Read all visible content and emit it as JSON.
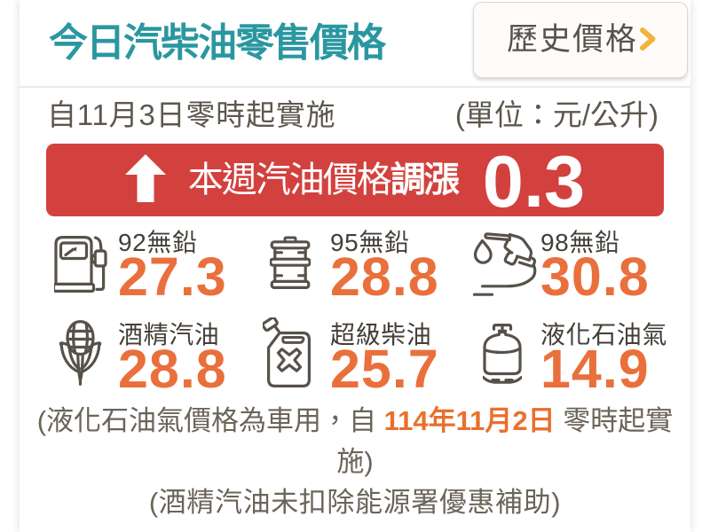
{
  "header": {
    "title": "今日汽柴油零售價格",
    "history_button": {
      "label": "歷史價格",
      "chevron_icon": "chevron-right-icon"
    }
  },
  "subheader": {
    "effective": "自11月3日零時起實施",
    "unit": "(單位：元/公升)"
  },
  "banner": {
    "direction_icon": "arrow-up-icon",
    "text": "本週汽油價格",
    "action": "調漲",
    "amount": "0.3"
  },
  "prices": [
    {
      "icon": "fuel-pump-icon",
      "label": "92無鉛",
      "value": "27.3"
    },
    {
      "icon": "oil-drum-icon",
      "label": "95無鉛",
      "value": "28.8"
    },
    {
      "icon": "fuel-nozzle-icon",
      "label": "98無鉛",
      "value": "30.8"
    },
    {
      "icon": "corn-icon",
      "label": "酒精汽油",
      "value": "28.8"
    },
    {
      "icon": "jerry-can-icon",
      "label": "超級柴油",
      "value": "25.7"
    },
    {
      "icon": "gas-cylinder-icon",
      "label": "液化石油氣",
      "value": "14.9"
    }
  ],
  "footer": {
    "note1_pre": "(液化石油氣價格為車用，自 ",
    "note1_date": "114年11月2日",
    "note1_post": " 零時起實施)",
    "note2": "(酒精汽油未扣除能源署優惠補助)"
  },
  "colors": {
    "teal": "#2a97a0",
    "red": "#d2413e",
    "price_orange": "#e9703c",
    "date_orange": "#e8702e",
    "chevron_amber": "#f2b33d",
    "icon_stroke": "#57514a"
  }
}
